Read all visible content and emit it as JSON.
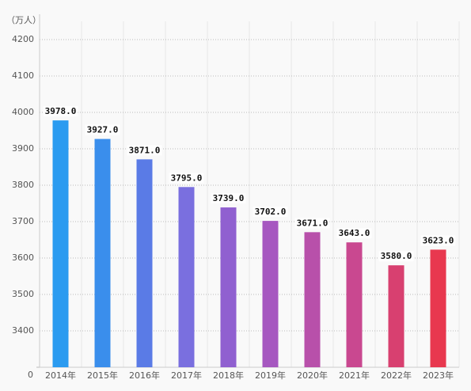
{
  "chart_data": {
    "type": "bar",
    "y_label": "（万人）",
    "categories": [
      "2014年",
      "2015年",
      "2016年",
      "2017年",
      "2018年",
      "2019年",
      "2020年",
      "2021年",
      "2022年",
      "2023年"
    ],
    "values": [
      3978,
      3927,
      3871,
      3795,
      3739,
      3702,
      3671,
      3643,
      3580,
      3623
    ],
    "value_labels": [
      "3978.0",
      "3927.0",
      "3871.0",
      "3795.0",
      "3739.0",
      "3702.0",
      "3671.0",
      "3643.0",
      "3580.0",
      "3623.0"
    ],
    "colors": [
      "#2b9bf0",
      "#3a8eec",
      "#5a7be6",
      "#7a6fdf",
      "#9060d0",
      "#a657c0",
      "#b850aa",
      "#c94890",
      "#d84070",
      "#e8384f"
    ],
    "ylim": [
      0,
      4250
    ],
    "y_break": [
      0,
      3300
    ],
    "yticks": [
      0,
      3400,
      3500,
      3600,
      3700,
      3800,
      3900,
      4000,
      4100,
      4200
    ],
    "grid": true
  }
}
